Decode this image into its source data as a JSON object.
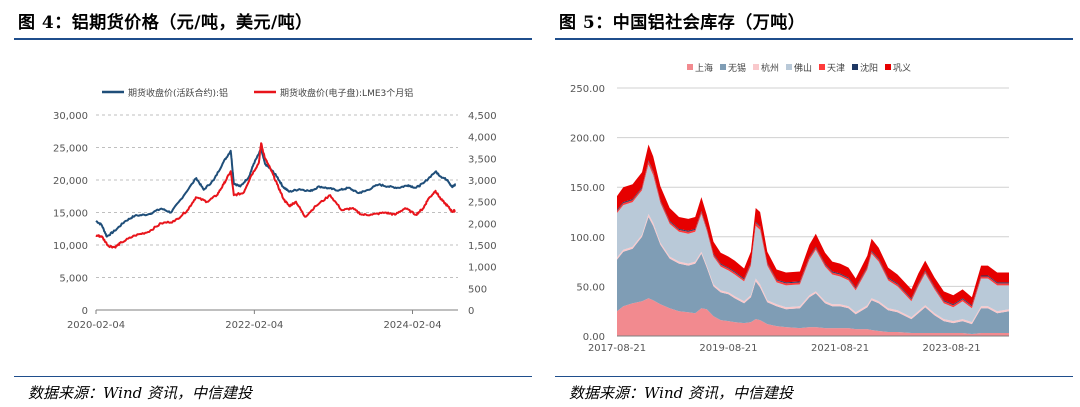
{
  "left_panel": {
    "figure_title": "图 4：铝期货价格（元/吨，美元/吨）",
    "source": "数据来源：Wind 资讯，中信建投"
  },
  "right_panel": {
    "figure_title": "图 5：中国铝社会库存（万吨）",
    "source": "数据来源：Wind 资讯，中信建投"
  },
  "chart_data": [
    {
      "type": "line",
      "legend_position": "top",
      "grid": "horizontal dashed",
      "x_ticks": [
        "2020-02-04",
        "2022-02-04",
        "2024-02-04"
      ],
      "y_left_ticks": [
        "0",
        "5,000",
        "10,000",
        "15,000",
        "20,000",
        "25,000",
        "30,000"
      ],
      "y_right_ticks": [
        "0",
        "500",
        "1,000",
        "1,500",
        "2,000",
        "2,500",
        "3,000",
        "3,500",
        "4,000",
        "4,500"
      ],
      "ylim_left": [
        0,
        30000
      ],
      "ylim_right": [
        0,
        4500
      ],
      "xlim": [
        "2020-02-04",
        "2024-09-01"
      ],
      "series": [
        {
          "name": "期货收盘价(活跃合约):铝",
          "axis": "left",
          "color": "#1f4e79",
          "points": [
            [
              "2020-02-04",
              13700
            ],
            [
              "2020-03-01",
              13100
            ],
            [
              "2020-03-25",
              11300
            ],
            [
              "2020-05-01",
              12200
            ],
            [
              "2020-06-15",
              13600
            ],
            [
              "2020-08-01",
              14500
            ],
            [
              "2020-10-01",
              14700
            ],
            [
              "2020-12-01",
              15600
            ],
            [
              "2021-01-15",
              15000
            ],
            [
              "2021-03-01",
              17000
            ],
            [
              "2021-05-12",
              20300
            ],
            [
              "2021-06-15",
              18500
            ],
            [
              "2021-08-01",
              20000
            ],
            [
              "2021-09-15",
              22800
            ],
            [
              "2021-10-18",
              24500
            ],
            [
              "2021-11-01",
              19500
            ],
            [
              "2021-12-01",
              19000
            ],
            [
              "2022-01-10",
              20500
            ],
            [
              "2022-02-01",
              22500
            ],
            [
              "2022-03-07",
              24700
            ],
            [
              "2022-03-25",
              22500
            ],
            [
              "2022-04-25",
              21500
            ],
            [
              "2022-05-20",
              20500
            ],
            [
              "2022-06-15",
              19000
            ],
            [
              "2022-07-15",
              18200
            ],
            [
              "2022-09-01",
              18600
            ],
            [
              "2022-10-20",
              18300
            ],
            [
              "2022-12-01",
              19000
            ],
            [
              "2023-01-15",
              18700
            ],
            [
              "2023-03-01",
              18400
            ],
            [
              "2023-04-15",
              18800
            ],
            [
              "2023-05-30",
              18000
            ],
            [
              "2023-07-01",
              18300
            ],
            [
              "2023-09-01",
              19300
            ],
            [
              "2023-10-15",
              19000
            ],
            [
              "2023-12-01",
              18800
            ],
            [
              "2024-01-15",
              19200
            ],
            [
              "2024-02-20",
              18800
            ],
            [
              "2024-03-25",
              19500
            ],
            [
              "2024-05-20",
              21300
            ],
            [
              "2024-06-15",
              20500
            ],
            [
              "2024-07-15",
              20000
            ],
            [
              "2024-08-05",
              18900
            ],
            [
              "2024-08-20",
              19300
            ]
          ]
        },
        {
          "name": "期货收盘价(电子盘):LME3个月铝",
          "axis": "right",
          "color": "#e8141b",
          "points": [
            [
              "2020-02-04",
              1720
            ],
            [
              "2020-03-01",
              1700
            ],
            [
              "2020-04-01",
              1480
            ],
            [
              "2020-05-01",
              1450
            ],
            [
              "2020-06-01",
              1560
            ],
            [
              "2020-08-01",
              1720
            ],
            [
              "2020-10-01",
              1800
            ],
            [
              "2020-12-01",
              2000
            ],
            [
              "2021-02-01",
              2050
            ],
            [
              "2021-04-01",
              2300
            ],
            [
              "2021-05-10",
              2600
            ],
            [
              "2021-07-01",
              2500
            ],
            [
              "2021-08-15",
              2650
            ],
            [
              "2021-09-15",
              2900
            ],
            [
              "2021-10-18",
              3200
            ],
            [
              "2021-11-01",
              2650
            ],
            [
              "2021-12-15",
              2700
            ],
            [
              "2022-01-20",
              3100
            ],
            [
              "2022-02-25",
              3400
            ],
            [
              "2022-03-07",
              3850
            ],
            [
              "2022-03-25",
              3500
            ],
            [
              "2022-04-20",
              3250
            ],
            [
              "2022-05-20",
              2900
            ],
            [
              "2022-06-20",
              2550
            ],
            [
              "2022-07-15",
              2400
            ],
            [
              "2022-08-15",
              2500
            ],
            [
              "2022-09-26",
              2150
            ],
            [
              "2022-11-15",
              2400
            ],
            [
              "2023-01-20",
              2650
            ],
            [
              "2023-03-15",
              2300
            ],
            [
              "2023-05-01",
              2350
            ],
            [
              "2023-06-15",
              2200
            ],
            [
              "2023-08-01",
              2200
            ],
            [
              "2023-10-01",
              2250
            ],
            [
              "2023-11-15",
              2200
            ],
            [
              "2024-01-01",
              2350
            ],
            [
              "2024-02-20",
              2200
            ],
            [
              "2024-03-25",
              2350
            ],
            [
              "2024-04-15",
              2550
            ],
            [
              "2024-05-20",
              2750
            ],
            [
              "2024-06-15",
              2550
            ],
            [
              "2024-07-15",
              2400
            ],
            [
              "2024-08-05",
              2270
            ],
            [
              "2024-08-20",
              2300
            ]
          ]
        }
      ]
    },
    {
      "type": "area",
      "stacked": true,
      "legend_position": "top",
      "grid": "horizontal",
      "x_ticks": [
        "2017-08-21",
        "2019-08-21",
        "2021-08-21",
        "2023-08-21"
      ],
      "y_ticks": [
        "0.00",
        "50.00",
        "100.00",
        "150.00",
        "200.00",
        "250.00"
      ],
      "ylim": [
        0,
        250
      ],
      "xlim": [
        "2017-08-21",
        "2024-08-31"
      ],
      "dates": [
        "2017-08-21",
        "2017-10-01",
        "2017-12-01",
        "2018-02-01",
        "2018-03-15",
        "2018-04-15",
        "2018-06-01",
        "2018-08-01",
        "2018-10-01",
        "2018-12-01",
        "2019-01-15",
        "2019-02-25",
        "2019-04-01",
        "2019-05-15",
        "2019-07-01",
        "2019-08-21",
        "2019-10-01",
        "2019-12-01",
        "2020-01-15",
        "2020-02-15",
        "2020-03-15",
        "2020-05-01",
        "2020-07-01",
        "2020-09-01",
        "2020-12-01",
        "2021-02-01",
        "2021-03-15",
        "2021-05-15",
        "2021-07-01",
        "2021-08-21",
        "2021-10-15",
        "2021-12-01",
        "2022-02-15",
        "2022-03-15",
        "2022-05-01",
        "2022-07-01",
        "2022-09-01",
        "2022-12-01",
        "2023-01-15",
        "2023-03-01",
        "2023-05-01",
        "2023-07-01",
        "2023-09-01",
        "2023-11-01",
        "2024-01-01",
        "2024-03-01",
        "2024-04-15",
        "2024-06-15",
        "2024-08-31"
      ],
      "series": [
        {
          "name": "上海",
          "color": "#f28a8f",
          "values": [
            25,
            30,
            33,
            35,
            38,
            36,
            32,
            28,
            25,
            24,
            23,
            28,
            27,
            20,
            16,
            15,
            14,
            13,
            14,
            17,
            16,
            12,
            10,
            9,
            8,
            9,
            9,
            8,
            8,
            8,
            8,
            7,
            7,
            6,
            5,
            4,
            4,
            3,
            3,
            3,
            3,
            3,
            3,
            3,
            2,
            3,
            3,
            3,
            3
          ]
        },
        {
          "name": "无锡",
          "color": "#7f9db5",
          "values": [
            52,
            55,
            55,
            65,
            82,
            75,
            60,
            50,
            48,
            47,
            50,
            55,
            42,
            30,
            28,
            27,
            24,
            20,
            25,
            38,
            33,
            22,
            20,
            18,
            20,
            30,
            34,
            25,
            22,
            22,
            20,
            15,
            22,
            30,
            28,
            22,
            20,
            14,
            20,
            26,
            18,
            12,
            10,
            12,
            10,
            25,
            25,
            20,
            22
          ]
        },
        {
          "name": "杭州",
          "color": "#f9c9cc",
          "values": [
            2,
            2,
            2,
            2,
            3,
            3,
            2,
            2,
            2,
            2,
            2,
            2,
            2,
            2,
            2,
            2,
            2,
            2,
            2,
            3,
            3,
            2,
            2,
            2,
            2,
            2,
            2,
            2,
            2,
            2,
            2,
            2,
            2,
            2,
            2,
            2,
            2,
            2,
            2,
            2,
            2,
            2,
            2,
            2,
            2,
            2,
            2,
            2,
            2
          ]
        },
        {
          "name": "佛山",
          "color": "#b9c9d8",
          "values": [
            45,
            45,
            45,
            45,
            50,
            48,
            40,
            33,
            30,
            30,
            30,
            38,
            35,
            28,
            24,
            22,
            22,
            20,
            30,
            53,
            55,
            35,
            22,
            22,
            22,
            36,
            42,
            35,
            30,
            28,
            26,
            22,
            36,
            45,
            40,
            28,
            24,
            16,
            25,
            32,
            24,
            16,
            14,
            18,
            14,
            28,
            28,
            26,
            24
          ]
        },
        {
          "name": "天津",
          "color": "#ff3b3b",
          "values": [
            2,
            2,
            2,
            2,
            3,
            3,
            2,
            2,
            2,
            2,
            2,
            2,
            2,
            2,
            2,
            2,
            2,
            2,
            2,
            3,
            3,
            2,
            2,
            2,
            2,
            2,
            2,
            2,
            2,
            2,
            2,
            2,
            2,
            2,
            2,
            2,
            2,
            2,
            2,
            2,
            2,
            2,
            2,
            2,
            2,
            2,
            2,
            2,
            2
          ]
        },
        {
          "name": "沈阳",
          "color": "#1f3864",
          "values": [
            1,
            1,
            1,
            1,
            1,
            1,
            1,
            1,
            1,
            1,
            1,
            1,
            1,
            1,
            1,
            1,
            1,
            1,
            1,
            1,
            1,
            1,
            1,
            1,
            1,
            1,
            1,
            1,
            1,
            1,
            1,
            1,
            1,
            1,
            1,
            1,
            1,
            1,
            1,
            1,
            1,
            1,
            1,
            1,
            1,
            1,
            1,
            1,
            1
          ]
        },
        {
          "name": "巩义",
          "color": "#e60000",
          "values": [
            14,
            15,
            15,
            15,
            16,
            15,
            14,
            13,
            12,
            12,
            12,
            14,
            13,
            12,
            11,
            11,
            11,
            10,
            11,
            14,
            14,
            11,
            10,
            10,
            10,
            12,
            13,
            11,
            10,
            10,
            10,
            9,
            11,
            12,
            11,
            10,
            9,
            9,
            10,
            10,
            9,
            9,
            9,
            9,
            8,
            10,
            10,
            10,
            10
          ]
        }
      ]
    }
  ]
}
